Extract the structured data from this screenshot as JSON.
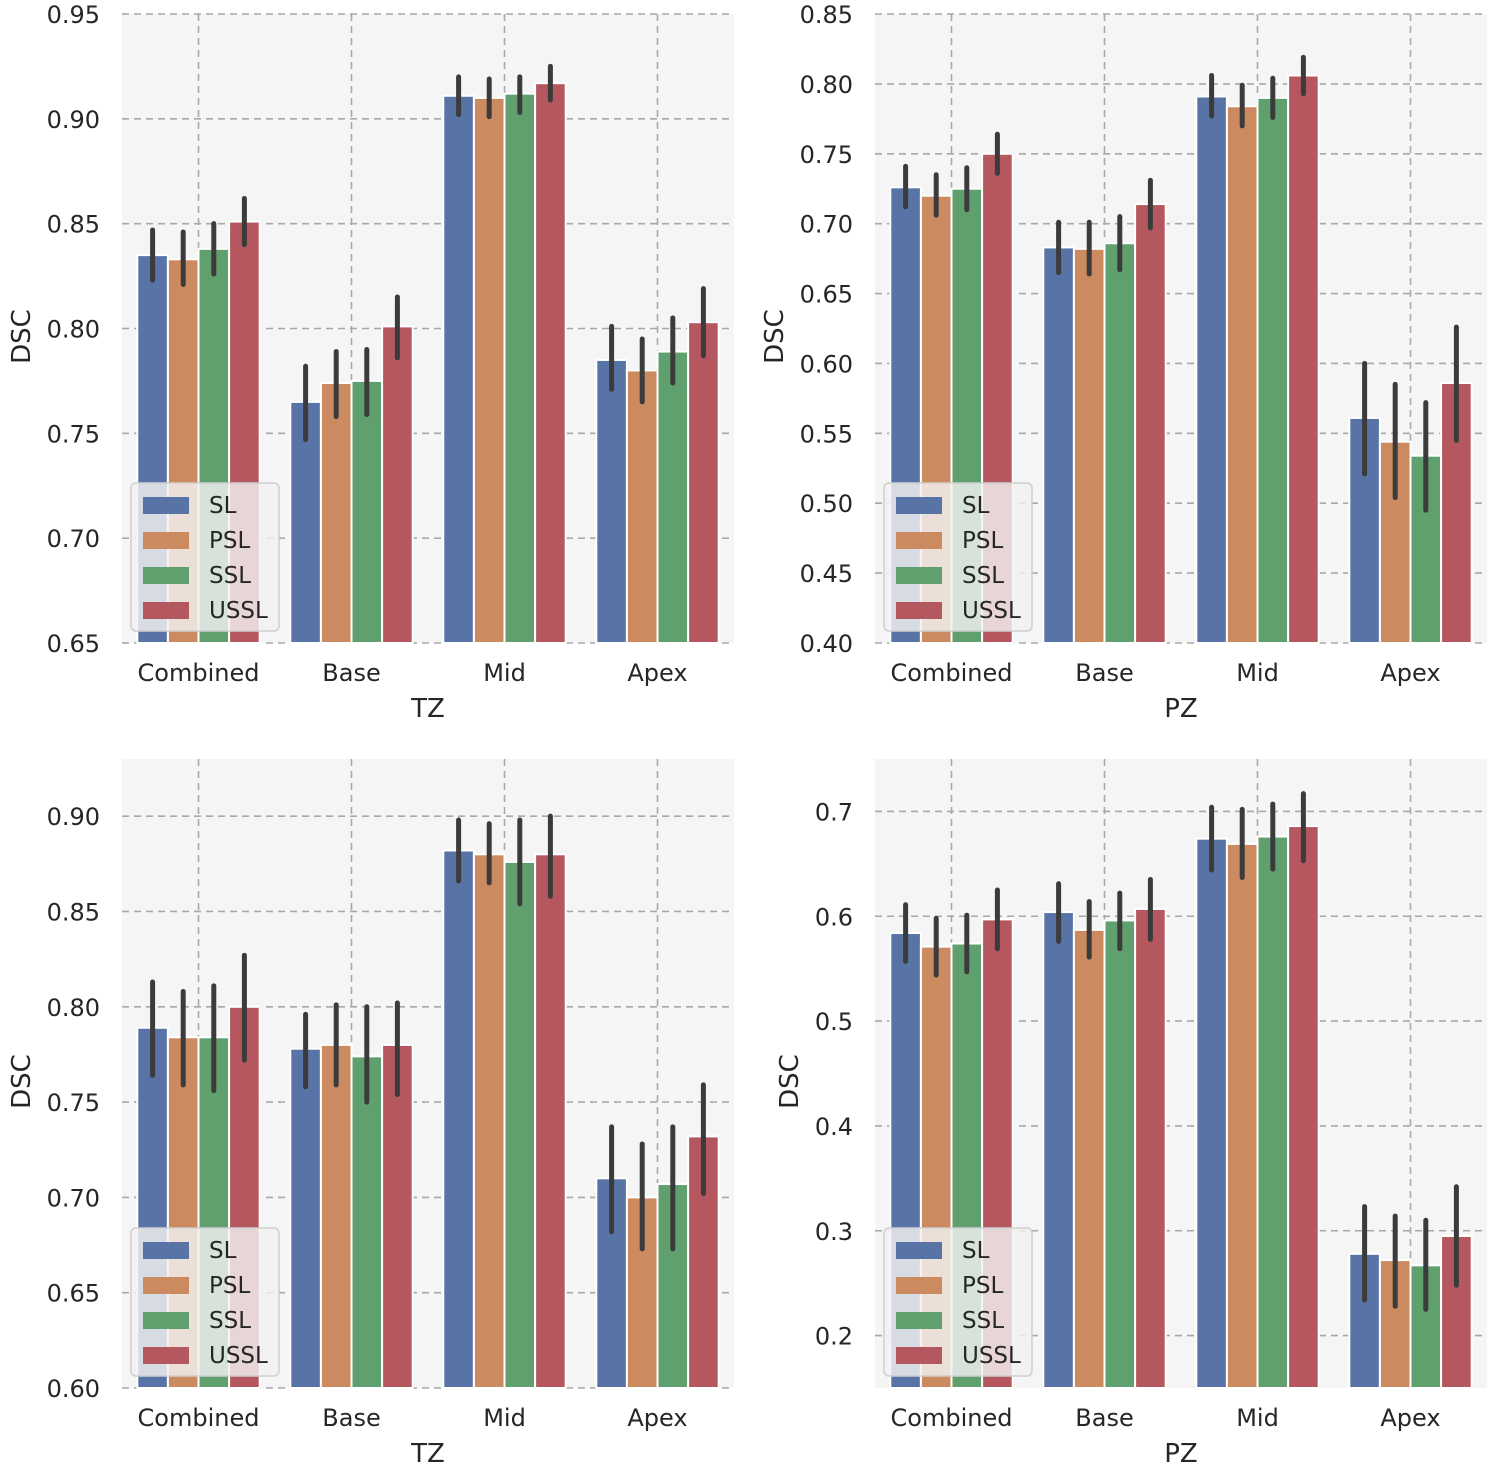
{
  "figure": {
    "legend_placement": "lower-left",
    "grid": true,
    "background": "#f5f5f5",
    "series_colors": {
      "SL": "#5874a6",
      "PSL": "#cc8a60",
      "SSL": "#5fa06e",
      "USSL": "#b5575e"
    },
    "error_bar_color": "#3b3b3b"
  },
  "chart_data": [
    {
      "type": "bar",
      "xlabel": "TZ",
      "ylabel": "DSC",
      "ylim": [
        0.65,
        0.95
      ],
      "yticks": [
        "0.65",
        "0.70",
        "0.75",
        "0.80",
        "0.85",
        "0.90",
        "0.95"
      ],
      "categories": [
        "Combined",
        "Base",
        "Mid",
        "Apex"
      ],
      "legend": [
        "SL",
        "PSL",
        "SSL",
        "USSL"
      ],
      "series": [
        {
          "name": "SL",
          "values": [
            0.835,
            0.765,
            0.911,
            0.785
          ],
          "ci": [
            [
              0.823,
              0.847
            ],
            [
              0.747,
              0.782
            ],
            [
              0.902,
              0.92
            ],
            [
              0.771,
              0.801
            ]
          ]
        },
        {
          "name": "PSL",
          "values": [
            0.833,
            0.774,
            0.91,
            0.78
          ],
          "ci": [
            [
              0.821,
              0.846
            ],
            [
              0.758,
              0.789
            ],
            [
              0.901,
              0.919
            ],
            [
              0.765,
              0.795
            ]
          ]
        },
        {
          "name": "SSL",
          "values": [
            0.838,
            0.775,
            0.912,
            0.789
          ],
          "ci": [
            [
              0.826,
              0.85
            ],
            [
              0.759,
              0.79
            ],
            [
              0.903,
              0.92
            ],
            [
              0.774,
              0.805
            ]
          ]
        },
        {
          "name": "USSL",
          "values": [
            0.851,
            0.801,
            0.917,
            0.803
          ],
          "ci": [
            [
              0.84,
              0.862
            ],
            [
              0.786,
              0.815
            ],
            [
              0.909,
              0.925
            ],
            [
              0.787,
              0.819
            ]
          ]
        }
      ]
    },
    {
      "type": "bar",
      "xlabel": "PZ",
      "ylabel": "DSC",
      "ylim": [
        0.4,
        0.85
      ],
      "yticks": [
        "0.40",
        "0.45",
        "0.50",
        "0.55",
        "0.60",
        "0.65",
        "0.70",
        "0.75",
        "0.80",
        "0.85"
      ],
      "categories": [
        "Combined",
        "Base",
        "Mid",
        "Apex"
      ],
      "legend": [
        "SL",
        "PSL",
        "SSL",
        "USSL"
      ],
      "series": [
        {
          "name": "SL",
          "values": [
            0.726,
            0.683,
            0.791,
            0.561
          ],
          "ci": [
            [
              0.712,
              0.741
            ],
            [
              0.665,
              0.701
            ],
            [
              0.777,
              0.806
            ],
            [
              0.521,
              0.6
            ]
          ]
        },
        {
          "name": "PSL",
          "values": [
            0.72,
            0.682,
            0.784,
            0.544
          ],
          "ci": [
            [
              0.706,
              0.735
            ],
            [
              0.664,
              0.701
            ],
            [
              0.77,
              0.799
            ],
            [
              0.504,
              0.585
            ]
          ]
        },
        {
          "name": "SSL",
          "values": [
            0.725,
            0.686,
            0.79,
            0.534
          ],
          "ci": [
            [
              0.71,
              0.74
            ],
            [
              0.667,
              0.705
            ],
            [
              0.776,
              0.804
            ],
            [
              0.495,
              0.572
            ]
          ]
        },
        {
          "name": "USSL",
          "values": [
            0.75,
            0.714,
            0.806,
            0.586
          ],
          "ci": [
            [
              0.736,
              0.764
            ],
            [
              0.697,
              0.731
            ],
            [
              0.793,
              0.819
            ],
            [
              0.545,
              0.626
            ]
          ]
        }
      ]
    },
    {
      "type": "bar",
      "xlabel": "TZ",
      "ylabel": "DSC",
      "ylim": [
        0.6,
        0.93
      ],
      "yticks": [
        "0.60",
        "0.65",
        "0.70",
        "0.75",
        "0.80",
        "0.85",
        "0.90"
      ],
      "categories": [
        "Combined",
        "Base",
        "Mid",
        "Apex"
      ],
      "legend": [
        "SL",
        "PSL",
        "SSL",
        "USSL"
      ],
      "series": [
        {
          "name": "SL",
          "values": [
            0.789,
            0.778,
            0.882,
            0.71
          ],
          "ci": [
            [
              0.764,
              0.813
            ],
            [
              0.758,
              0.796
            ],
            [
              0.866,
              0.898
            ],
            [
              0.682,
              0.737
            ]
          ]
        },
        {
          "name": "PSL",
          "values": [
            0.784,
            0.78,
            0.88,
            0.7
          ],
          "ci": [
            [
              0.759,
              0.808
            ],
            [
              0.759,
              0.801
            ],
            [
              0.865,
              0.896
            ],
            [
              0.673,
              0.728
            ]
          ]
        },
        {
          "name": "SSL",
          "values": [
            0.784,
            0.774,
            0.876,
            0.707
          ],
          "ci": [
            [
              0.756,
              0.811
            ],
            [
              0.75,
              0.8
            ],
            [
              0.854,
              0.898
            ],
            [
              0.673,
              0.737
            ]
          ]
        },
        {
          "name": "USSL",
          "values": [
            0.8,
            0.78,
            0.88,
            0.732
          ],
          "ci": [
            [
              0.772,
              0.827
            ],
            [
              0.754,
              0.802
            ],
            [
              0.858,
              0.9
            ],
            [
              0.702,
              0.759
            ]
          ]
        }
      ]
    },
    {
      "type": "bar",
      "xlabel": "PZ",
      "ylabel": "DSC",
      "ylim": [
        0.15,
        0.75
      ],
      "yticks": [
        "0.2",
        "0.3",
        "0.4",
        "0.5",
        "0.6",
        "0.7"
      ],
      "categories": [
        "Combined",
        "Base",
        "Mid",
        "Apex"
      ],
      "legend": [
        "SL",
        "PSL",
        "SSL",
        "USSL"
      ],
      "series": [
        {
          "name": "SL",
          "values": [
            0.584,
            0.604,
            0.674,
            0.278
          ],
          "ci": [
            [
              0.557,
              0.611
            ],
            [
              0.576,
              0.631
            ],
            [
              0.644,
              0.704
            ],
            [
              0.234,
              0.323
            ]
          ]
        },
        {
          "name": "PSL",
          "values": [
            0.571,
            0.587,
            0.669,
            0.272
          ],
          "ci": [
            [
              0.544,
              0.598
            ],
            [
              0.561,
              0.614
            ],
            [
              0.637,
              0.702
            ],
            [
              0.228,
              0.314
            ]
          ]
        },
        {
          "name": "SSL",
          "values": [
            0.574,
            0.596,
            0.676,
            0.267
          ],
          "ci": [
            [
              0.547,
              0.601
            ],
            [
              0.569,
              0.622
            ],
            [
              0.645,
              0.707
            ],
            [
              0.225,
              0.31
            ]
          ]
        },
        {
          "name": "USSL",
          "values": [
            0.597,
            0.607,
            0.686,
            0.295
          ],
          "ci": [
            [
              0.569,
              0.625
            ],
            [
              0.578,
              0.635
            ],
            [
              0.653,
              0.717
            ],
            [
              0.248,
              0.342
            ]
          ]
        }
      ]
    }
  ]
}
